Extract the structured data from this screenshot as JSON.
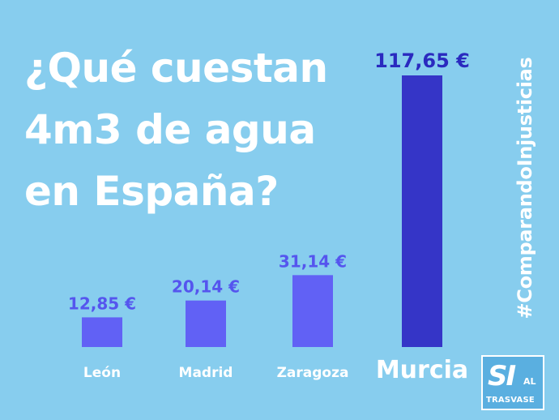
{
  "title_lines": [
    "¿Qué cuestan",
    "4m3 de agua",
    "en España?"
  ],
  "hashtag": "#ComparandoInjusticias",
  "logo": {
    "si": "SI",
    "al": "AL",
    "trasvase": "TRASVASE"
  },
  "colors": {
    "background": "#87CDEE",
    "bar": "#6161F5",
    "highlight_bar": "#3535C7",
    "value_label": "#5555EE",
    "highlight_value_label": "#2A2ABF",
    "category_label": "#ffffff"
  },
  "chart_data": {
    "type": "bar",
    "categories": [
      "León",
      "Madrid",
      "Zaragoza",
      "Murcia"
    ],
    "values": [
      12.85,
      20.14,
      31.14,
      117.65
    ],
    "value_labels": [
      "12,85 €",
      "20,14 €",
      "31,14 €",
      "117,65 €"
    ],
    "highlight": "Murcia",
    "title": "¿Qué cuestan 4m3 de agua en España?",
    "xlabel": "",
    "ylabel": "",
    "ylim": [
      0,
      117.65
    ],
    "grid": false,
    "legend": "none"
  }
}
